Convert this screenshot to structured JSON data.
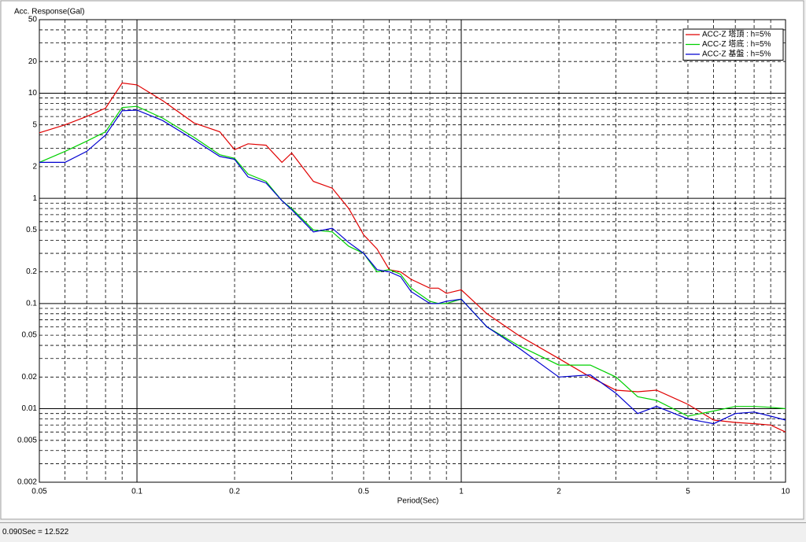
{
  "chart_data": {
    "type": "line",
    "y_label": "Acc. Response(Gal)",
    "x_label": "Period(Sec)",
    "log_x": true,
    "log_y": true,
    "grid": true,
    "legend": "top-right",
    "xlim": [
      0.05,
      10
    ],
    "xticks": [
      0.05,
      0.1,
      0.2,
      0.5,
      1,
      2,
      5,
      10
    ],
    "xgrid": [
      0.06,
      0.07,
      0.08,
      0.09,
      0.1,
      0.2,
      0.3,
      0.4,
      0.5,
      0.6,
      0.7,
      0.8,
      0.9,
      1,
      2,
      3,
      4,
      5,
      6,
      7,
      8,
      9
    ],
    "ylim": [
      0.002,
      50
    ],
    "yticks": [
      50,
      20,
      10,
      5,
      2,
      1,
      0.5,
      0.2,
      0.1,
      0.05,
      0.02,
      0.01,
      0.005,
      0.002
    ],
    "ygrid": [
      0.003,
      0.004,
      0.005,
      0.006,
      0.007,
      0.008,
      0.009,
      0.01,
      0.02,
      0.03,
      0.04,
      0.05,
      0.06,
      0.07,
      0.08,
      0.09,
      0.1,
      0.2,
      0.3,
      0.4,
      0.5,
      0.6,
      0.7,
      0.8,
      0.9,
      1,
      2,
      3,
      4,
      5,
      6,
      7,
      8,
      9,
      10,
      20,
      30,
      40
    ],
    "x": [
      0.05,
      0.06,
      0.07,
      0.08,
      0.09,
      0.1,
      0.12,
      0.15,
      0.18,
      0.2,
      0.22,
      0.25,
      0.28,
      0.3,
      0.35,
      0.4,
      0.45,
      0.5,
      0.55,
      0.6,
      0.65,
      0.7,
      0.8,
      0.85,
      0.9,
      1,
      1.2,
      1.5,
      2,
      2.5,
      3,
      3.5,
      4,
      5,
      6,
      7,
      8,
      9,
      10
    ],
    "series": [
      {
        "name": "ACC-Z 塔頂 : h=5%",
        "color": "#e00000",
        "values": [
          4.2,
          5,
          6,
          7.2,
          12.5,
          12,
          8.5,
          5.2,
          4.3,
          2.9,
          3.3,
          3.2,
          2.2,
          2.7,
          1.45,
          1.25,
          0.8,
          0.45,
          0.33,
          0.21,
          0.2,
          0.17,
          0.14,
          0.14,
          0.125,
          0.135,
          0.08,
          0.05,
          0.03,
          0.02,
          0.015,
          0.0145,
          0.015,
          0.011,
          0.0078,
          0.0074,
          0.0072,
          0.007,
          0.006
        ]
      },
      {
        "name": "ACC-Z 塔底 : h=5%",
        "color": "#00d000",
        "values": [
          2.2,
          2.8,
          3.5,
          4.3,
          7.3,
          7.5,
          5.8,
          3.8,
          2.6,
          2.4,
          1.7,
          1.45,
          0.95,
          0.8,
          0.5,
          0.48,
          0.35,
          0.3,
          0.2,
          0.21,
          0.19,
          0.14,
          0.105,
          0.1,
          0.1,
          0.11,
          0.06,
          0.04,
          0.026,
          0.026,
          0.02,
          0.013,
          0.012,
          0.0085,
          0.0095,
          0.0105,
          0.0105,
          0.0103,
          0.01
        ]
      },
      {
        "name": "ACC-Z 基盤 : h=5%",
        "color": "#0000d0",
        "values": [
          2.2,
          2.2,
          2.8,
          4,
          6.8,
          6.9,
          5.5,
          3.6,
          2.5,
          2.35,
          1.6,
          1.4,
          0.95,
          0.78,
          0.48,
          0.52,
          0.38,
          0.3,
          0.21,
          0.2,
          0.18,
          0.13,
          0.1,
          0.1,
          0.105,
          0.11,
          0.06,
          0.038,
          0.02,
          0.021,
          0.014,
          0.009,
          0.0105,
          0.008,
          0.0072,
          0.009,
          0.0093,
          0.0085,
          0.0078
        ]
      }
    ]
  },
  "status_bar": "0.090Sec = 12.522"
}
